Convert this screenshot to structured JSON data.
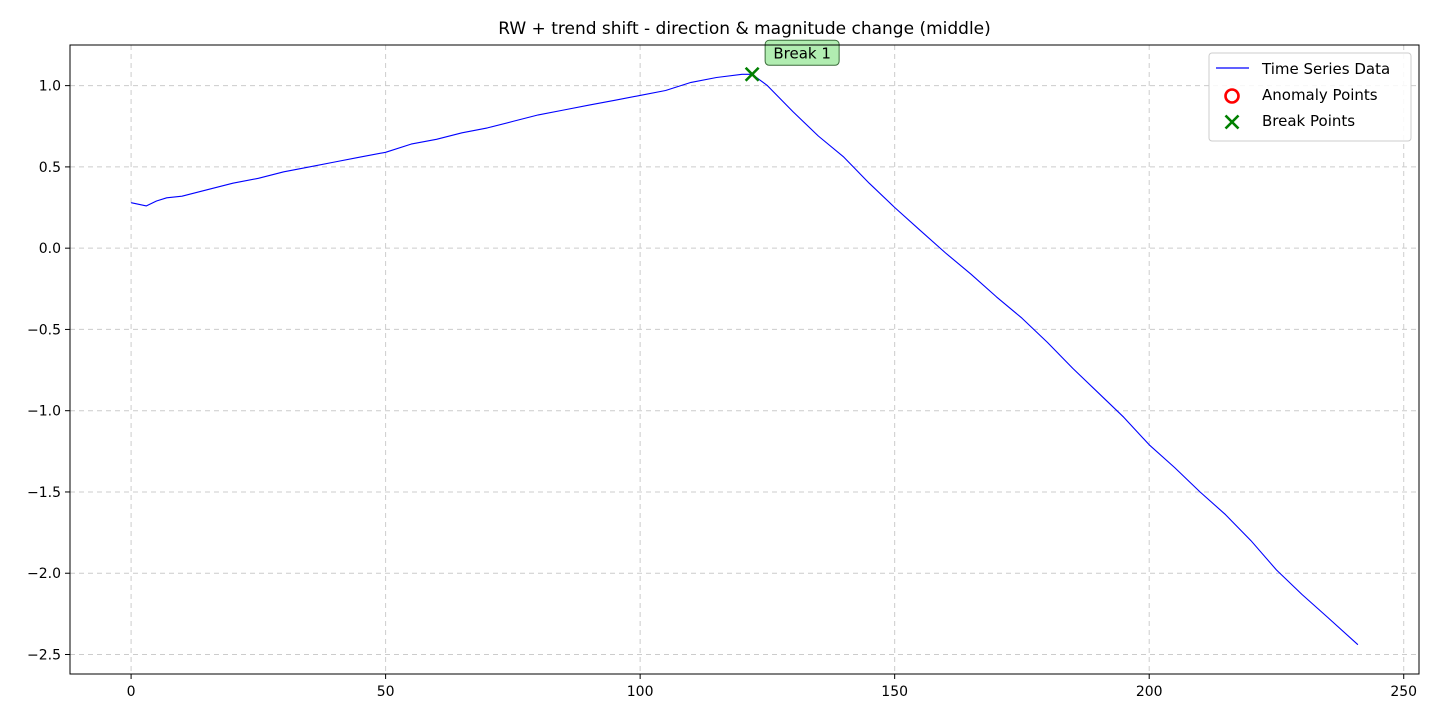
{
  "chart_data": {
    "type": "line",
    "title": "RW + trend shift - direction & magnitude change (middle)",
    "xlabel": "",
    "ylabel": "",
    "xlim": [
      -12,
      253
    ],
    "ylim": [
      -2.62,
      1.25
    ],
    "xticks": [
      0,
      50,
      100,
      150,
      200,
      250
    ],
    "yticks": [
      1.0,
      0.5,
      0.0,
      -0.5,
      -1.0,
      -1.5,
      -2.0,
      -2.5
    ],
    "grid": true,
    "legend": {
      "placement": "top-right",
      "entries": [
        {
          "label": "Time Series Data",
          "marker": "line",
          "color": "#0000ff"
        },
        {
          "label": "Anomaly Points",
          "marker": "circle",
          "color": "#ff0000"
        },
        {
          "label": "Break Points",
          "marker": "x",
          "color": "#008000"
        }
      ]
    },
    "series": [
      {
        "name": "Time Series Data",
        "color": "#0000ff",
        "x": [
          0,
          3,
          5,
          7,
          10,
          15,
          20,
          25,
          30,
          35,
          40,
          45,
          50,
          55,
          60,
          65,
          70,
          75,
          80,
          85,
          90,
          95,
          100,
          105,
          110,
          115,
          120,
          122,
          125,
          130,
          135,
          140,
          145,
          150,
          155,
          160,
          165,
          170,
          175,
          180,
          185,
          190,
          195,
          200,
          205,
          210,
          215,
          220,
          225,
          230,
          235,
          241
        ],
        "y": [
          0.28,
          0.26,
          0.29,
          0.31,
          0.32,
          0.36,
          0.4,
          0.43,
          0.47,
          0.5,
          0.53,
          0.56,
          0.59,
          0.64,
          0.67,
          0.71,
          0.74,
          0.78,
          0.82,
          0.85,
          0.88,
          0.91,
          0.94,
          0.97,
          1.02,
          1.05,
          1.07,
          1.07,
          1.0,
          0.84,
          0.69,
          0.56,
          0.4,
          0.25,
          0.11,
          -0.03,
          -0.16,
          -0.3,
          -0.43,
          -0.58,
          -0.74,
          -0.89,
          -1.04,
          -1.21,
          -1.35,
          -1.5,
          -1.64,
          -1.8,
          -1.98,
          -2.13,
          -2.27,
          -2.44
        ]
      }
    ],
    "anomaly_points": [],
    "break_points": [
      {
        "x": 122,
        "y": 1.07,
        "label": "Break 1"
      }
    ]
  }
}
